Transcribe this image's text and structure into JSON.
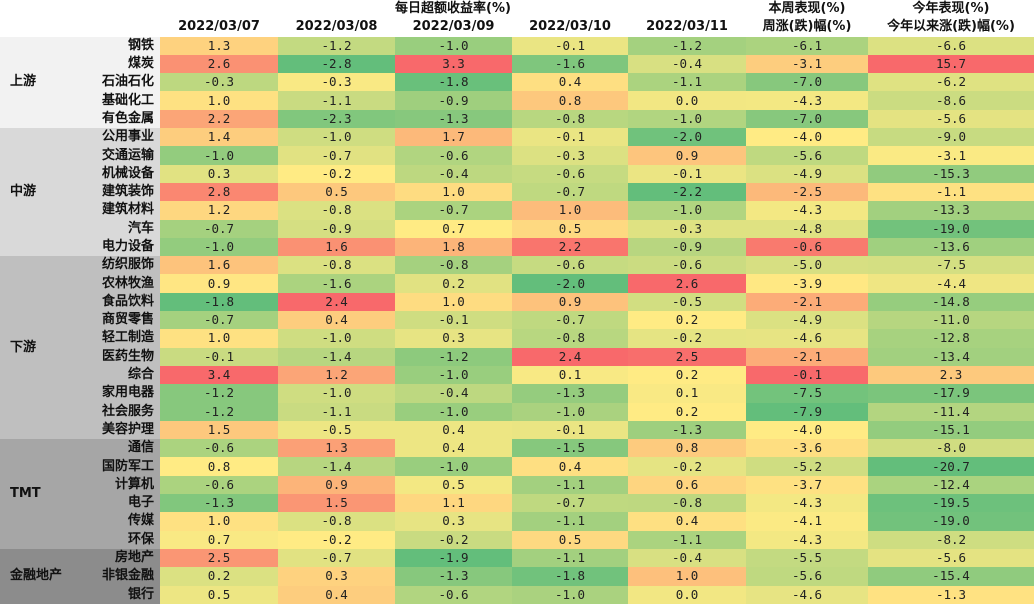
{
  "header": {
    "daily_group": "每日超额收益率(%)",
    "week_group": "本周表现(%)",
    "ytd_group": "今年表现(%)",
    "dates": [
      "2022/03/07",
      "2022/03/08",
      "2022/03/09",
      "2022/03/10",
      "2022/03/11"
    ],
    "week_col": "周涨(跌)幅(%)",
    "ytd_col": "今年以来涨(跌)幅(%)"
  },
  "group_colors": {
    "上游": "#f2f2f2",
    "中游": "#d9d9d9",
    "下游": "#bfbfbf",
    "TMT": "#a6a6a6",
    "金融地产": "#8c8c8c"
  },
  "color_scale": {
    "low": "#63be7b",
    "mid": "#ffeb84",
    "high": "#f8696b"
  },
  "groups": [
    {
      "name": "上游",
      "rows": [
        {
          "industry": "钢铁",
          "daily": [
            "1.3",
            "-1.2",
            "-1.0",
            "-0.1",
            "-1.2"
          ],
          "week": "-6.1",
          "ytd": "-6.6"
        },
        {
          "industry": "煤炭",
          "daily": [
            "2.6",
            "-2.8",
            "3.3",
            "-1.6",
            "-0.4"
          ],
          "week": "-3.1",
          "ytd": "15.7"
        },
        {
          "industry": "石油石化",
          "daily": [
            "-0.3",
            "-0.3",
            "-1.8",
            "0.4",
            "-1.1"
          ],
          "week": "-7.0",
          "ytd": "-6.2"
        },
        {
          "industry": "基础化工",
          "daily": [
            "1.0",
            "-1.1",
            "-0.9",
            "0.8",
            "0.0"
          ],
          "week": "-4.3",
          "ytd": "-8.6"
        },
        {
          "industry": "有色金属",
          "daily": [
            "2.2",
            "-2.3",
            "-1.3",
            "-0.8",
            "-1.0"
          ],
          "week": "-7.0",
          "ytd": "-5.6"
        }
      ]
    },
    {
      "name": "中游",
      "rows": [
        {
          "industry": "公用事业",
          "daily": [
            "1.4",
            "-1.0",
            "1.7",
            "-0.1",
            "-2.0"
          ],
          "week": "-4.0",
          "ytd": "-9.0"
        },
        {
          "industry": "交通运输",
          "daily": [
            "-1.0",
            "-0.7",
            "-0.6",
            "-0.3",
            "0.9"
          ],
          "week": "-5.6",
          "ytd": "-3.1"
        },
        {
          "industry": "机械设备",
          "daily": [
            "0.3",
            "-0.2",
            "-0.4",
            "-0.6",
            "-0.1"
          ],
          "week": "-4.9",
          "ytd": "-15.3"
        },
        {
          "industry": "建筑装饰",
          "daily": [
            "2.8",
            "0.5",
            "1.0",
            "-0.7",
            "-2.2"
          ],
          "week": "-2.5",
          "ytd": "-1.1"
        },
        {
          "industry": "建筑材料",
          "daily": [
            "1.2",
            "-0.8",
            "-0.7",
            "1.0",
            "-1.0"
          ],
          "week": "-4.3",
          "ytd": "-13.3"
        },
        {
          "industry": "汽车",
          "daily": [
            "-0.7",
            "-0.9",
            "0.7",
            "0.5",
            "-0.3"
          ],
          "week": "-4.8",
          "ytd": "-19.0"
        },
        {
          "industry": "电力设备",
          "daily": [
            "-1.0",
            "1.6",
            "1.8",
            "2.2",
            "-0.9"
          ],
          "week": "-0.6",
          "ytd": "-13.6"
        }
      ]
    },
    {
      "name": "下游",
      "rows": [
        {
          "industry": "纺织服饰",
          "daily": [
            "1.6",
            "-0.8",
            "-0.8",
            "-0.6",
            "-0.6"
          ],
          "week": "-5.0",
          "ytd": "-7.5"
        },
        {
          "industry": "农林牧渔",
          "daily": [
            "0.9",
            "-1.6",
            "0.2",
            "-2.0",
            "2.6"
          ],
          "week": "-3.9",
          "ytd": "-4.4"
        },
        {
          "industry": "食品饮料",
          "daily": [
            "-1.8",
            "2.4",
            "1.0",
            "0.9",
            "-0.5"
          ],
          "week": "-2.1",
          "ytd": "-14.8"
        },
        {
          "industry": "商贸零售",
          "daily": [
            "-0.7",
            "0.4",
            "-0.1",
            "-0.7",
            "0.2"
          ],
          "week": "-4.9",
          "ytd": "-11.0"
        },
        {
          "industry": "轻工制造",
          "daily": [
            "1.0",
            "-1.0",
            "0.3",
            "-0.8",
            "-0.2"
          ],
          "week": "-4.6",
          "ytd": "-12.8"
        },
        {
          "industry": "医药生物",
          "daily": [
            "-0.1",
            "-1.4",
            "-1.2",
            "2.4",
            "2.5"
          ],
          "week": "-2.1",
          "ytd": "-13.4"
        },
        {
          "industry": "综合",
          "daily": [
            "3.4",
            "1.2",
            "-1.0",
            "0.1",
            "0.2"
          ],
          "week": "-0.1",
          "ytd": "2.3"
        },
        {
          "industry": "家用电器",
          "daily": [
            "-1.2",
            "-1.0",
            "-0.4",
            "-1.3",
            "0.1"
          ],
          "week": "-7.5",
          "ytd": "-17.9"
        },
        {
          "industry": "社会服务",
          "daily": [
            "-1.2",
            "-1.1",
            "-1.0",
            "-1.0",
            "0.2"
          ],
          "week": "-7.9",
          "ytd": "-11.4"
        },
        {
          "industry": "美容护理",
          "daily": [
            "1.5",
            "-0.5",
            "0.4",
            "-0.1",
            "-1.3"
          ],
          "week": "-4.0",
          "ytd": "-15.1"
        }
      ]
    },
    {
      "name": "TMT",
      "rows": [
        {
          "industry": "通信",
          "daily": [
            "-0.6",
            "1.3",
            "0.4",
            "-1.5",
            "0.8"
          ],
          "week": "-3.6",
          "ytd": "-8.0"
        },
        {
          "industry": "国防军工",
          "daily": [
            "0.8",
            "-1.4",
            "-1.0",
            "0.4",
            "-0.2"
          ],
          "week": "-5.2",
          "ytd": "-20.7"
        },
        {
          "industry": "计算机",
          "daily": [
            "-0.6",
            "0.9",
            "0.5",
            "-1.1",
            "0.6"
          ],
          "week": "-3.7",
          "ytd": "-12.4"
        },
        {
          "industry": "电子",
          "daily": [
            "-1.3",
            "1.5",
            "1.1",
            "-0.7",
            "-0.8"
          ],
          "week": "-4.3",
          "ytd": "-19.5"
        },
        {
          "industry": "传媒",
          "daily": [
            "1.0",
            "-0.8",
            "0.3",
            "-1.1",
            "0.4"
          ],
          "week": "-4.1",
          "ytd": "-19.0"
        },
        {
          "industry": "环保",
          "daily": [
            "0.7",
            "-0.2",
            "-0.2",
            "0.5",
            "-1.1"
          ],
          "week": "-4.3",
          "ytd": "-8.2"
        }
      ]
    },
    {
      "name": "金融地产",
      "rows": [
        {
          "industry": "房地产",
          "daily": [
            "2.5",
            "-0.7",
            "-1.9",
            "-1.1",
            "-0.4"
          ],
          "week": "-5.5",
          "ytd": "-5.6"
        },
        {
          "industry": "非银金融",
          "daily": [
            "0.2",
            "0.3",
            "-1.3",
            "-1.8",
            "1.0"
          ],
          "week": "-5.6",
          "ytd": "-15.4"
        },
        {
          "industry": "银行",
          "daily": [
            "0.5",
            "0.4",
            "-0.6",
            "-1.0",
            "0.0"
          ],
          "week": "-4.6",
          "ytd": "-1.3"
        }
      ]
    }
  ]
}
